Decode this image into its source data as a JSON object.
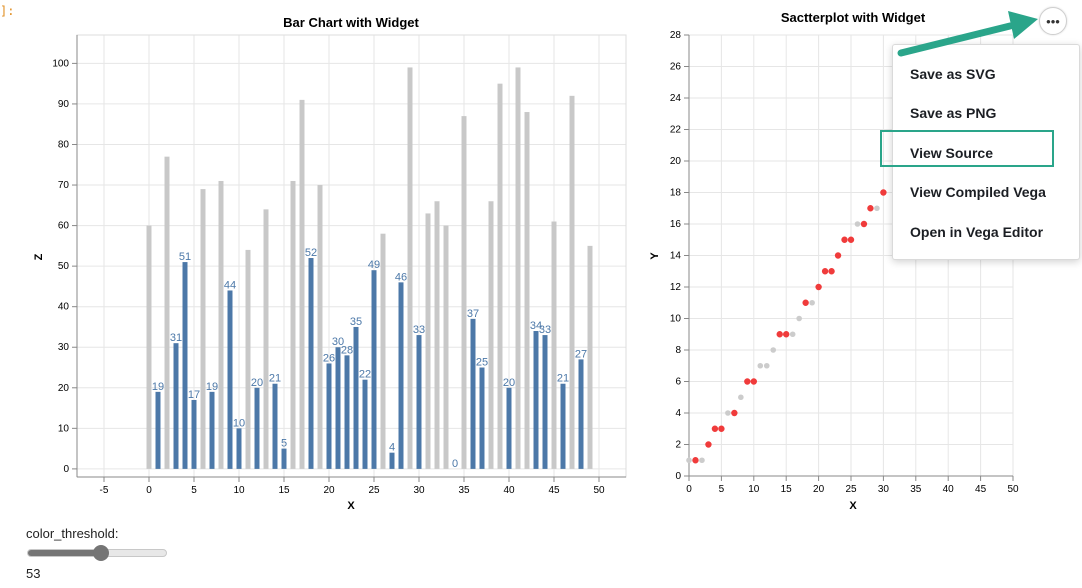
{
  "cell": {
    "prompt": "]:"
  },
  "colors": {
    "bar_above": "#4c78a8",
    "bar_below": "#c8c8c8",
    "point_highlight": "#f03b3b",
    "point_muted": "#cccccc",
    "arrow": "#2aa58a"
  },
  "actions_button": {
    "icon": "ellipsis-icon",
    "label": "•••"
  },
  "actions_menu": {
    "items": [
      "Save as SVG",
      "Save as PNG",
      "View Source",
      "View Compiled Vega",
      "Open in Vega Editor"
    ]
  },
  "widget": {
    "label": "color_threshold:",
    "value": "53",
    "min": 0,
    "max": 100,
    "level": 53
  },
  "chart_data": [
    {
      "type": "bar",
      "title": "Bar Chart with Widget",
      "xlabel": "X",
      "ylabel": "Z",
      "xlim": [
        -8,
        53
      ],
      "ylim": [
        -2,
        107
      ],
      "x_ticks": [
        -5,
        0,
        5,
        10,
        15,
        20,
        25,
        30,
        35,
        40,
        45,
        50
      ],
      "y_ticks": [
        0,
        10,
        20,
        30,
        40,
        50,
        60,
        70,
        80,
        90,
        100
      ],
      "grid": true,
      "gray_x": [
        0,
        2,
        6,
        8,
        11,
        13,
        16,
        17,
        19,
        26,
        29,
        31,
        32,
        33,
        35,
        38,
        39,
        41,
        42,
        45,
        47,
        49
      ],
      "gray_values": [
        60,
        77,
        69,
        71,
        54,
        64,
        71,
        91,
        70,
        58,
        99,
        63,
        66,
        60,
        87,
        66,
        95,
        99,
        88,
        61,
        92,
        55
      ],
      "blue_x": [
        1,
        3,
        4,
        5,
        7,
        9,
        10,
        12,
        14,
        15,
        18,
        20,
        21,
        22,
        23,
        24,
        25,
        27,
        28,
        30,
        34,
        36,
        37,
        40,
        43,
        44,
        46,
        48
      ],
      "blue_values": [
        19,
        31,
        51,
        17,
        19,
        44,
        10,
        20,
        21,
        5,
        52,
        26,
        30,
        28,
        35,
        22,
        49,
        4,
        46,
        33,
        0,
        37,
        25,
        20,
        34,
        33,
        21,
        27
      ],
      "blue_labels": [
        "19",
        "31",
        "51",
        "17",
        "19",
        "44",
        "10",
        "20",
        "21",
        "5",
        "52",
        "26",
        "30",
        "28",
        "35",
        "22",
        "49",
        "4",
        "46",
        "33",
        "0",
        "37",
        "25",
        "20",
        "34",
        "33",
        "21",
        "27"
      ]
    },
    {
      "type": "scatter",
      "title": "Sactterplot with Widget",
      "xlabel": "X",
      "ylabel": "Y",
      "xlim": [
        0,
        50
      ],
      "ylim": [
        0,
        28
      ],
      "x_ticks": [
        0,
        5,
        10,
        15,
        20,
        25,
        30,
        35,
        40,
        45,
        50
      ],
      "y_ticks": [
        0,
        2,
        4,
        6,
        8,
        10,
        12,
        14,
        16,
        18,
        20,
        22,
        24,
        26,
        28
      ],
      "grid": true,
      "red_points": [
        [
          1,
          1
        ],
        [
          3,
          2
        ],
        [
          4,
          3
        ],
        [
          5,
          3
        ],
        [
          7,
          4
        ],
        [
          9,
          6
        ],
        [
          10,
          6
        ],
        [
          14,
          9
        ],
        [
          15,
          9
        ],
        [
          18,
          11
        ],
        [
          20,
          12
        ],
        [
          21,
          13
        ],
        [
          22,
          13
        ],
        [
          23,
          14
        ],
        [
          24,
          15
        ],
        [
          25,
          15
        ],
        [
          27,
          16
        ],
        [
          28,
          17
        ],
        [
          30,
          18
        ]
      ],
      "gray_points": [
        [
          0,
          1
        ],
        [
          2,
          1
        ],
        [
          6,
          4
        ],
        [
          8,
          5
        ],
        [
          11,
          7
        ],
        [
          12,
          7
        ],
        [
          13,
          8
        ],
        [
          16,
          9
        ],
        [
          17,
          10
        ],
        [
          19,
          11
        ],
        [
          26,
          16
        ],
        [
          29,
          17
        ]
      ]
    }
  ]
}
